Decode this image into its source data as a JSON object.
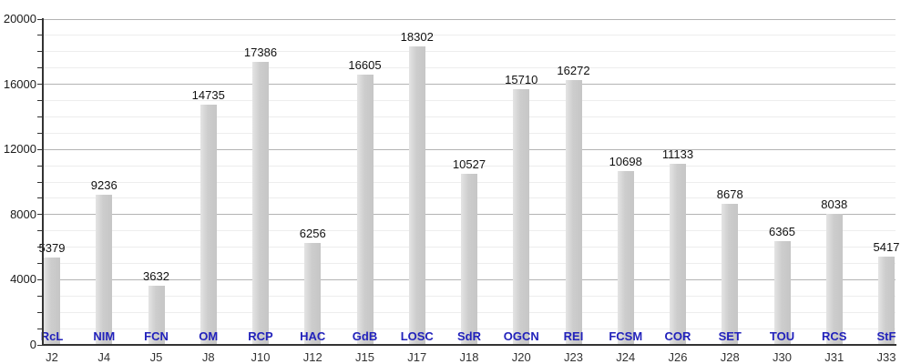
{
  "chart_data": {
    "type": "bar",
    "title": "",
    "xlabel": "",
    "ylabel": "",
    "categories": [
      "J2",
      "J4",
      "J5",
      "J8",
      "J10",
      "J12",
      "J15",
      "J17",
      "J18",
      "J20",
      "J23",
      "J24",
      "J26",
      "J28",
      "J30",
      "J31",
      "J33"
    ],
    "bar_labels": [
      "RcL",
      "NIM",
      "FCN",
      "OM",
      "RCP",
      "HAC",
      "GdB",
      "LOSC",
      "SdR",
      "OGCN",
      "REI",
      "FCSM",
      "COR",
      "SET",
      "TOU",
      "RCS",
      "StF"
    ],
    "values": [
      5379,
      9236,
      3632,
      14735,
      17386,
      6256,
      16605,
      18302,
      10527,
      15710,
      16272,
      10698,
      11133,
      8678,
      6365,
      8038,
      5417
    ],
    "ylim": [
      0,
      20000
    ],
    "y_major_step": 4000,
    "y_minor_step": 1000,
    "y_tick_labels": [
      "0",
      "4000",
      "8000",
      "12000",
      "16000",
      "20000"
    ],
    "grid": true,
    "legend": "none",
    "colors": {
      "background": "#ffffff",
      "bar_fill_light": "#e4e4e4",
      "bar_fill_dark": "#c6c6c6",
      "major_gridline": "#b3b3b3",
      "minor_gridline": "#ededed",
      "axis": "#333333",
      "value_label": "#111111",
      "code_label": "#2222bb",
      "x_tick_label": "#333333"
    }
  }
}
